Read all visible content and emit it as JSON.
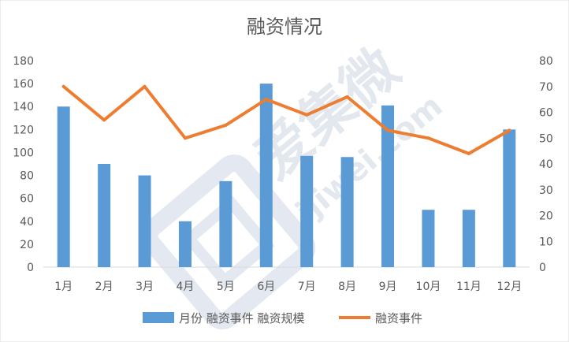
{
  "chart_data": {
    "type": "bar+line",
    "title": "融资情况",
    "categories": [
      "1月",
      "2月",
      "3月",
      "4月",
      "5月",
      "6月",
      "7月",
      "8月",
      "9月",
      "10月",
      "11月",
      "12月"
    ],
    "series": [
      {
        "name": "月份 融资事件 融资规模",
        "type": "bar",
        "axis": "left",
        "color": "#5b9bd5",
        "values": [
          140,
          90,
          80,
          40,
          75,
          160,
          97,
          96,
          141,
          50,
          50,
          120
        ]
      },
      {
        "name": "融资事件",
        "type": "line",
        "axis": "right",
        "color": "#ed7d31",
        "values": [
          70,
          57,
          70,
          50,
          55,
          65,
          59,
          66,
          53,
          50,
          44,
          53
        ]
      }
    ],
    "y_left": {
      "min": 0,
      "max": 180,
      "step": 20
    },
    "y_right": {
      "min": 0,
      "max": 80,
      "step": 10
    },
    "grid": false,
    "legend_position": "bottom"
  },
  "watermark": {
    "text": "爱集微",
    "url": "ijiwei.com"
  }
}
